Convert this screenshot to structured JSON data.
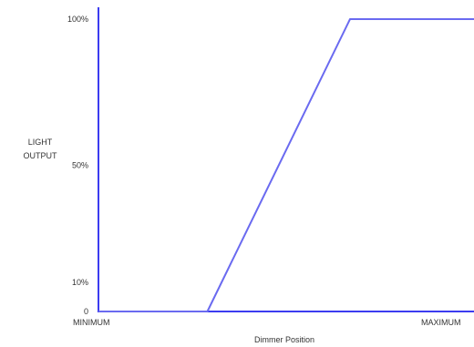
{
  "chart_data": {
    "type": "line",
    "title": "",
    "xlabel": "Dimmer Position",
    "ylabel_lines": [
      "LIGHT",
      "OUTPUT"
    ],
    "x_tick_labels": [
      "MINIMUM",
      "MAXIMUM"
    ],
    "xlim": [
      0,
      100
    ],
    "ylim": [
      0,
      100
    ],
    "y_ticks": [
      {
        "value": 0,
        "label": "0"
      },
      {
        "value": 10,
        "label": "10%"
      },
      {
        "value": 50,
        "label": "50%"
      },
      {
        "value": 100,
        "label": "100%"
      }
    ],
    "series": [
      {
        "x": [
          0,
          29,
          67,
          100
        ],
        "y": [
          0,
          0,
          100,
          100
        ]
      }
    ],
    "grid": false,
    "legend": "none",
    "colors": {
      "axis": "#3c3cf0",
      "line": "#6a6af0",
      "text": "#333333"
    }
  }
}
